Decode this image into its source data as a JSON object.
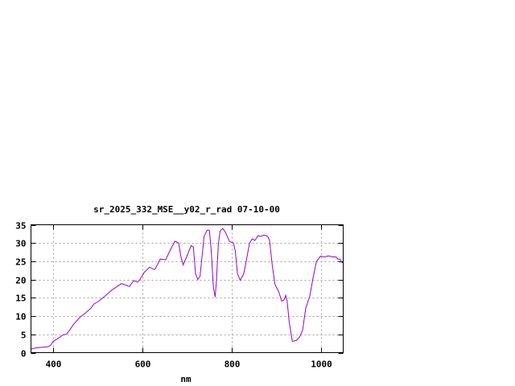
{
  "chart_data": {
    "type": "line",
    "title": "sr_2025_332_MSE__y02_r_rad 07-10-00",
    "xlabel": "nm",
    "ylabel": "",
    "xlim": [
      350,
      1050
    ],
    "ylim": [
      0,
      35
    ],
    "xticks": [
      400,
      600,
      800,
      1000
    ],
    "yticks": [
      0,
      5,
      10,
      15,
      20,
      25,
      30,
      35
    ],
    "grid": true,
    "legend": "none",
    "line_color": "#9400d3",
    "series": [
      {
        "x": [
          350,
          361,
          370,
          376,
          387,
          394,
          400,
          412,
          421,
          430,
          437,
          445,
          460,
          472,
          484,
          491,
          502,
          517,
          532,
          553,
          571,
          580,
          589,
          595,
          604,
          616,
          625,
          628,
          640,
          652,
          664,
          673,
          681,
          686,
          691,
          702,
          709,
          714,
          719,
          724,
          729,
          738,
          745,
          750,
          754,
          759,
          763,
          766,
          770,
          774,
          780,
          786,
          795,
          804,
          808,
          813,
          819,
          827,
          833,
          840,
          846,
          852,
          859,
          865,
          873,
          881,
          885,
          891,
          897,
          906,
          912,
          917,
          921,
          924,
          929,
          936,
          945,
          953,
          959,
          966,
          975,
          983,
          990,
          999,
          1008,
          1017,
          1026,
          1034,
          1038,
          1043,
          1047,
          1050
        ],
        "y": [
          0.95,
          1.3,
          1.4,
          1.5,
          1.6,
          2.0,
          3.1,
          4.0,
          4.8,
          5.1,
          6.2,
          7.7,
          9.7,
          10.8,
          12.1,
          13.3,
          14.1,
          15.6,
          17.2,
          18.9,
          18.1,
          19.7,
          19.3,
          20.1,
          22.0,
          23.4,
          22.8,
          22.8,
          25.6,
          25.4,
          28.5,
          30.5,
          30.0,
          26.4,
          24.0,
          27.1,
          29.3,
          28.9,
          21.6,
          20.0,
          20.9,
          31.8,
          33.5,
          33.5,
          28.2,
          17.9,
          15.2,
          20.1,
          29.6,
          33.3,
          34.0,
          32.9,
          30.4,
          30.0,
          27.8,
          21.6,
          19.8,
          21.6,
          25.3,
          30.0,
          31.1,
          30.7,
          32.0,
          31.8,
          32.2,
          31.8,
          30.7,
          23.8,
          18.7,
          16.5,
          14.1,
          14.4,
          15.7,
          14.3,
          8.4,
          3.1,
          3.3,
          4.4,
          6.2,
          12.1,
          15.4,
          20.9,
          24.9,
          26.4,
          26.2,
          26.5,
          26.2,
          26.2,
          25.6,
          25.6,
          24.7,
          24.5
        ]
      }
    ]
  }
}
